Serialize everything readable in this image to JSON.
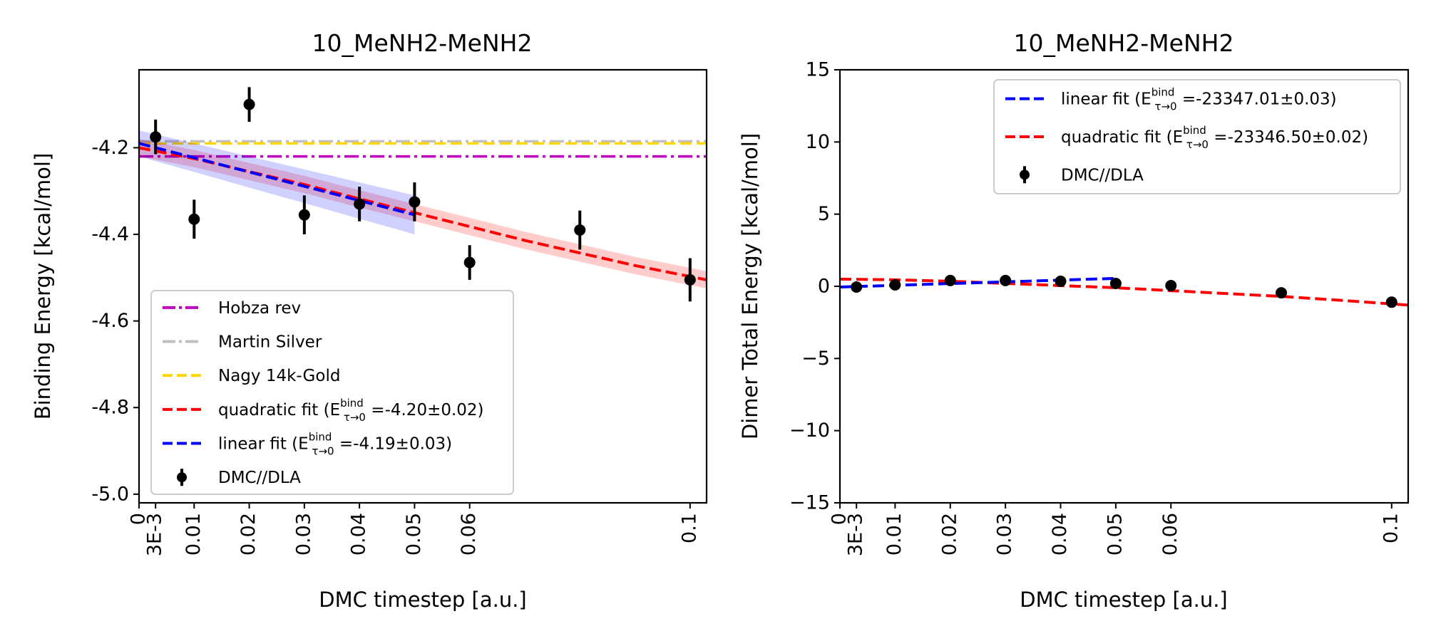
{
  "chart_data": [
    {
      "type": "scatter",
      "title": "10_MeNH2-MeNH2",
      "xlabel": "DMC timestep [a.u.]",
      "ylabel": "Binding Energy [kcal/mol]",
      "xlim": [
        0,
        0.103
      ],
      "ylim": [
        -5.02,
        -4.02
      ],
      "xtick_labels": [
        "0",
        "3E-3",
        "0.01",
        "0.02",
        "0.03",
        "0.04",
        "0.05",
        "0.06",
        "0.1"
      ],
      "xtick_values": [
        0,
        0.003,
        0.01,
        0.02,
        0.03,
        0.04,
        0.05,
        0.06,
        0.1
      ],
      "ytick_labels": [
        "-4.2",
        "-4.4",
        "-4.6",
        "-4.8",
        "-5.0"
      ],
      "ytick_values": [
        -4.2,
        -4.4,
        -4.6,
        -4.8,
        -5.0
      ],
      "legend_position": "lower-left",
      "legend": [
        {
          "label": "Hobza rev",
          "sup": "",
          "sub": "",
          "value": "",
          "color": "#bf00bf",
          "style": "dashdot"
        },
        {
          "label": "Martin Silver",
          "sup": "",
          "sub": "",
          "value": "",
          "color": "#c0c0c0",
          "style": "dashdot"
        },
        {
          "label": "Nagy 14k-Gold",
          "sup": "",
          "sub": "",
          "value": "",
          "color": "#ffd700",
          "style": "dashed"
        },
        {
          "label": "quadratic fit (E",
          "sup": "bind",
          "sub": "τ→0",
          "value": " =-4.20±0.02)",
          "color": "#ff0000",
          "style": "dashed"
        },
        {
          "label": "linear fit (E",
          "sup": "bind",
          "sub": "τ→0",
          "value": " =-4.19±0.03)",
          "color": "#0000ff",
          "style": "dashed"
        },
        {
          "label": "DMC//DLA",
          "sup": "",
          "sub": "",
          "value": "",
          "color": "#000000",
          "style": "errorbar"
        }
      ],
      "reference_lines": [
        {
          "name": "Hobza rev",
          "y": -4.22,
          "color": "#bf00bf",
          "style": "dashdot"
        },
        {
          "name": "Martin Silver",
          "y": -4.185,
          "color": "#c0c0c0",
          "style": "dashdot"
        },
        {
          "name": "Nagy 14k-Gold",
          "y": -4.19,
          "color": "#ffd700",
          "style": "dashed"
        }
      ],
      "fits": [
        {
          "name": "quadratic fit",
          "color": "#ff0000",
          "x": [
            0,
            0.01,
            0.02,
            0.03,
            0.04,
            0.05,
            0.06,
            0.07,
            0.08,
            0.09,
            0.103
          ],
          "y": [
            -4.2,
            -4.225,
            -4.255,
            -4.285,
            -4.318,
            -4.35,
            -4.382,
            -4.414,
            -4.443,
            -4.472,
            -4.505
          ],
          "band": 0.02
        },
        {
          "name": "linear fit",
          "color": "#0000ff",
          "x": [
            0,
            0.05
          ],
          "y": [
            -4.19,
            -4.355
          ],
          "band_start": 0.03,
          "band_end": 0.045
        }
      ],
      "points": {
        "name": "DMC//DLA",
        "x": [
          0.003,
          0.01,
          0.02,
          0.03,
          0.04,
          0.05,
          0.06,
          0.08,
          0.1
        ],
        "y": [
          -4.175,
          -4.365,
          -4.1,
          -4.355,
          -4.33,
          -4.325,
          -4.465,
          -4.39,
          -4.505
        ],
        "err": [
          0.04,
          0.045,
          0.04,
          0.045,
          0.04,
          0.045,
          0.04,
          0.045,
          0.05
        ]
      }
    },
    {
      "type": "scatter",
      "title": "10_MeNH2-MeNH2",
      "xlabel": "DMC timestep [a.u.]",
      "ylabel": "Dimer Total Energy [kcal/mol]",
      "xlim": [
        0,
        0.103
      ],
      "ylim": [
        -15,
        15
      ],
      "xtick_labels": [
        "0",
        "3E-3",
        "0.01",
        "0.02",
        "0.03",
        "0.04",
        "0.05",
        "0.06",
        "0.1"
      ],
      "xtick_values": [
        0,
        0.003,
        0.01,
        0.02,
        0.03,
        0.04,
        0.05,
        0.06,
        0.1
      ],
      "ytick_labels": [
        "15",
        "10",
        "5",
        "0",
        "−5",
        "−10",
        "−15"
      ],
      "ytick_values": [
        15,
        10,
        5,
        0,
        -5,
        -10,
        -15
      ],
      "legend_position": "upper-right",
      "legend": [
        {
          "label": "linear fit (E",
          "sup": "bind",
          "sub": "τ→0",
          "value": " =-23347.01±0.03)",
          "color": "#0000ff",
          "style": "dashed"
        },
        {
          "label": "quadratic fit (E",
          "sup": "bind",
          "sub": "τ→0",
          "value": " =-23346.50±0.02)",
          "color": "#ff0000",
          "style": "dashed"
        },
        {
          "label": "DMC//DLA",
          "sup": "",
          "sub": "",
          "value": "",
          "color": "#000000",
          "style": "errorbar"
        }
      ],
      "reference_lines": [],
      "fits": [
        {
          "name": "quadratic fit",
          "color": "#ff0000",
          "x": [
            0,
            0.01,
            0.02,
            0.03,
            0.04,
            0.05,
            0.06,
            0.07,
            0.08,
            0.09,
            0.103
          ],
          "y": [
            0.5,
            0.45,
            0.35,
            0.2,
            0.05,
            -0.1,
            -0.3,
            -0.5,
            -0.7,
            -0.95,
            -1.3
          ],
          "band": 0
        },
        {
          "name": "linear fit",
          "color": "#0000ff",
          "x": [
            0,
            0.05
          ],
          "y": [
            -0.05,
            0.55
          ],
          "band_start": 0,
          "band_end": 0
        }
      ],
      "points": {
        "name": "DMC//DLA",
        "x": [
          0.003,
          0.01,
          0.02,
          0.03,
          0.04,
          0.05,
          0.06,
          0.08,
          0.1
        ],
        "y": [
          -0.05,
          0.1,
          0.4,
          0.4,
          0.35,
          0.2,
          0.05,
          -0.45,
          -1.1
        ],
        "err": [
          0.1,
          0.1,
          0.1,
          0.1,
          0.1,
          0.1,
          0.1,
          0.1,
          0.1
        ]
      }
    }
  ]
}
